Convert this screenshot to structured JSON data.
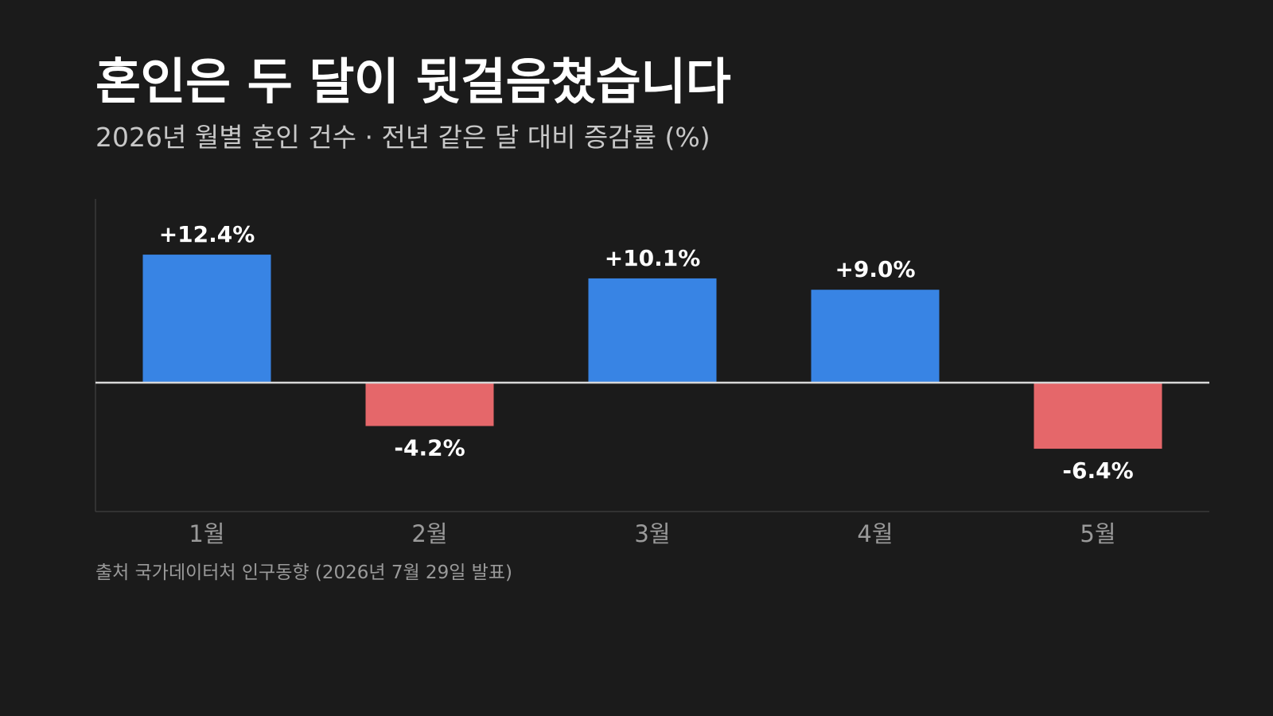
{
  "title": "혼인은 두 달이 뒷걸음쳤습니다",
  "subtitle": "2026년 월별 혼인 건수 · 전년 같은 달 대비 증감률 (%)",
  "source": "출처 국가데이터처 인구동향 (2026년 7월 29일 발표)",
  "colors": {
    "positive": "#3884e4",
    "negative": "#e5676a",
    "baseline": "#d8d8d8",
    "axis": "#3a3a3a",
    "tick_label": "#9a9a9a",
    "data_label": "#ffffff"
  },
  "chart_data": {
    "type": "bar",
    "categories": [
      "1월",
      "2월",
      "3월",
      "4월",
      "5월"
    ],
    "values": [
      12.4,
      -4.2,
      10.1,
      9.0,
      -6.4
    ],
    "data_labels": [
      "+12.4%",
      "-4.2%",
      "+10.1%",
      "+9.0%",
      "-6.4%"
    ],
    "title": "혼인은 두 달이 뒷걸음쳤습니다",
    "subtitle": "2026년 월별 혼인 건수 · 전년 같은 달 대비 증감률 (%)",
    "xlabel": "",
    "ylabel": "",
    "ylim": [
      -12.5,
      17.8
    ],
    "grid": false,
    "legend": "none"
  }
}
